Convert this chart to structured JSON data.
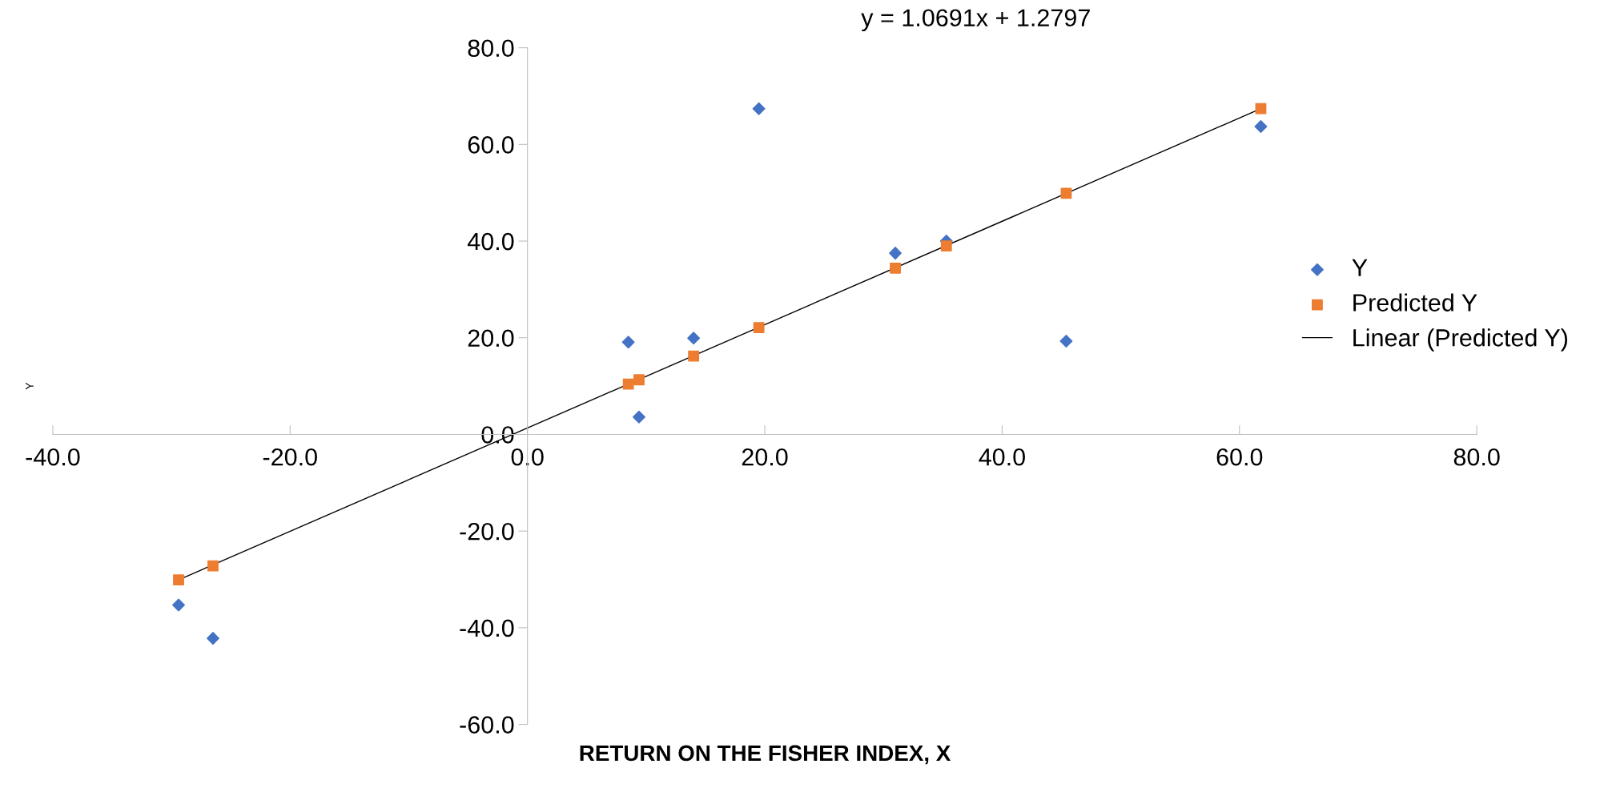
{
  "chart_data": {
    "type": "scatter",
    "xlabel": "RETURN ON THE FISHER INDEX, X",
    "ylabel": "Y",
    "annotations": [
      "y = 1.0691x + 1.2797"
    ],
    "xlim": [
      -40,
      80
    ],
    "xticks": [
      {
        "value": -40,
        "label": "-40.0"
      },
      {
        "value": -20,
        "label": "-20.0"
      },
      {
        "value": 0,
        "label": "0.0"
      },
      {
        "value": 20,
        "label": "20.0"
      },
      {
        "value": 40,
        "label": "40.0"
      },
      {
        "value": 60,
        "label": "60.0"
      },
      {
        "value": 80,
        "label": "80.0"
      }
    ],
    "ylim": [
      -60,
      80
    ],
    "yticks": [
      {
        "value": -60,
        "label": "-60.0"
      },
      {
        "value": -40,
        "label": "-40.0"
      },
      {
        "value": -20,
        "label": "-20.0"
      },
      {
        "value": 0,
        "label": "0.0"
      },
      {
        "value": 20,
        "label": "20.0"
      },
      {
        "value": 40,
        "label": "40.0"
      },
      {
        "value": 60,
        "label": "60.0"
      },
      {
        "value": 80,
        "label": "80.0"
      }
    ],
    "grid": false,
    "legend": "right",
    "series": [
      {
        "name": "Y",
        "marker": "diamond",
        "color": "#4472c4",
        "x": [
          -29.4,
          -26.5,
          8.5,
          9.4,
          14.0,
          19.5,
          31.0,
          35.3,
          45.4,
          61.8
        ],
        "values": [
          -35.3,
          -42.2,
          19.1,
          3.6,
          19.9,
          67.4,
          37.5,
          40.0,
          19.3,
          63.7
        ]
      },
      {
        "name": "Predicted Y",
        "marker": "square",
        "color": "#ed7d31",
        "x": [
          -29.4,
          -26.5,
          8.5,
          9.4,
          14.0,
          19.5,
          31.0,
          35.3,
          45.4,
          61.8
        ],
        "values": [
          -30.1,
          -27.2,
          10.4,
          11.3,
          16.2,
          22.1,
          34.4,
          39.0,
          49.9,
          67.4
        ]
      },
      {
        "name": "Linear (Predicted Y)",
        "type": "line",
        "marker": "none",
        "line_style": "solid",
        "color": "#000000",
        "x": [
          -29.4,
          61.8
        ],
        "values": [
          -30.1,
          67.4
        ]
      }
    ]
  }
}
